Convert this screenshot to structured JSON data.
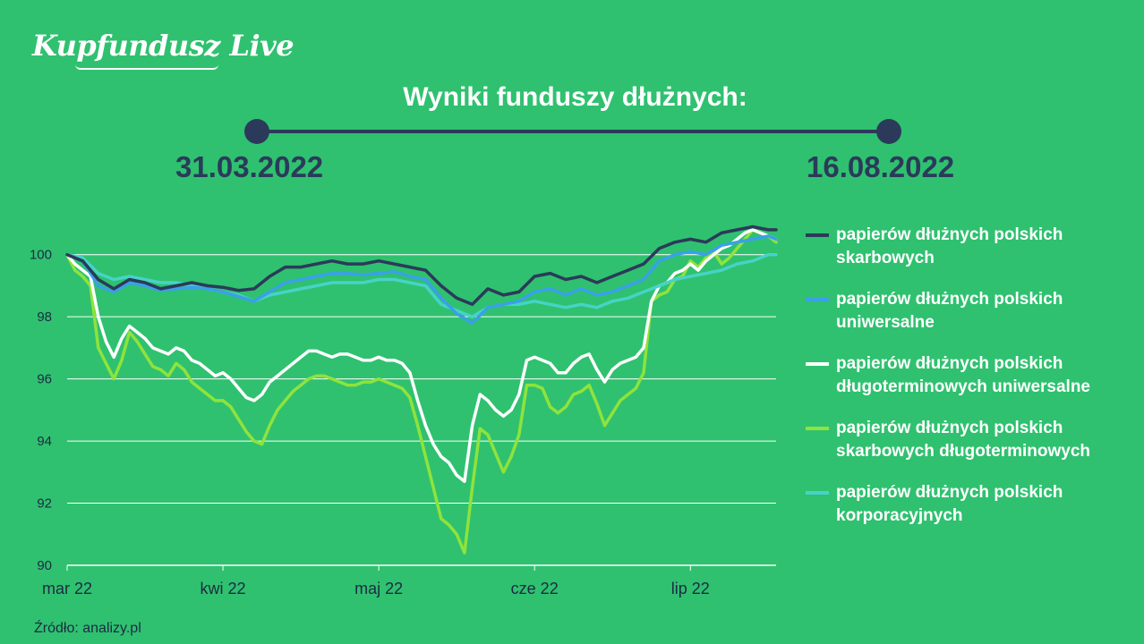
{
  "brand": {
    "logo_text": "Kupfundusz Live"
  },
  "header": {
    "title": "Wyniki funduszy dłużnych:",
    "start_date": "31.03.2022",
    "end_date": "16.08.2022"
  },
  "source_text": "Źródło: analizy.pl",
  "colors": {
    "background": "#2fc16f",
    "navy": "#2b3a5a",
    "blue": "#3aa0e8",
    "white": "#ffffff",
    "lime": "#8ee33c",
    "teal": "#46d3c7"
  },
  "chart_data": {
    "type": "line",
    "title": "Wyniki funduszy dłużnych:",
    "xlabel": "",
    "ylabel": "",
    "ylim": [
      90,
      101
    ],
    "yticks": [
      90,
      92,
      94,
      96,
      98,
      100
    ],
    "x_categories": [
      "mar 22",
      "kwi 22",
      "maj 22",
      "cze 22",
      "lip 22"
    ],
    "x_tick_positions": [
      0,
      10,
      20,
      30,
      40
    ],
    "x_max": 45.5,
    "grid": true,
    "legend_position": "right",
    "series": [
      {
        "name": "papierów dłużnych polskich skarbowych",
        "color": "#2b3a5a",
        "x": [
          0,
          1,
          2,
          3,
          4,
          5,
          6,
          7,
          8,
          9,
          10,
          11,
          12,
          13,
          14,
          15,
          16,
          17,
          18,
          19,
          20,
          21,
          22,
          23,
          24,
          25,
          26,
          27,
          28,
          29,
          30,
          31,
          32,
          33,
          34,
          35,
          36,
          37,
          38,
          39,
          40,
          41,
          42,
          43,
          44,
          45,
          45.5
        ],
        "values": [
          100,
          99.8,
          99.2,
          98.9,
          99.2,
          99.1,
          98.9,
          99.0,
          99.1,
          99.0,
          98.95,
          98.85,
          98.9,
          99.3,
          99.6,
          99.6,
          99.7,
          99.8,
          99.7,
          99.7,
          99.8,
          99.7,
          99.6,
          99.5,
          99.0,
          98.6,
          98.4,
          98.9,
          98.7,
          98.8,
          99.3,
          99.4,
          99.2,
          99.3,
          99.1,
          99.3,
          99.5,
          99.7,
          100.2,
          100.4,
          100.5,
          100.4,
          100.7,
          100.8,
          100.9,
          100.8,
          100.8
        ]
      },
      {
        "name": "papierów dłużnych polskich uniwersalne",
        "color": "#3aa0e8",
        "x": [
          0,
          1,
          2,
          3,
          4,
          5,
          6,
          7,
          8,
          9,
          10,
          11,
          12,
          13,
          14,
          15,
          16,
          17,
          18,
          19,
          20,
          21,
          22,
          23,
          24,
          25,
          26,
          27,
          28,
          29,
          30,
          31,
          32,
          33,
          34,
          35,
          36,
          37,
          38,
          39,
          40,
          41,
          42,
          43,
          44,
          45,
          45.5
        ],
        "values": [
          100,
          99.8,
          99.0,
          98.8,
          99.1,
          99.0,
          98.85,
          98.9,
          98.95,
          98.9,
          98.8,
          98.65,
          98.5,
          98.8,
          99.1,
          99.2,
          99.3,
          99.4,
          99.4,
          99.35,
          99.4,
          99.45,
          99.3,
          99.2,
          98.6,
          98.1,
          97.8,
          98.3,
          98.4,
          98.5,
          98.8,
          98.9,
          98.7,
          98.9,
          98.7,
          98.8,
          99.0,
          99.2,
          99.8,
          100.0,
          100.1,
          100.0,
          100.3,
          100.4,
          100.5,
          100.6,
          100.5
        ]
      },
      {
        "name": "papierów dłużnych polskich długoterminowych uniwersalne",
        "color": "#ffffff",
        "x": [
          0,
          0.5,
          1,
          1.5,
          2,
          2.5,
          3,
          3.5,
          4,
          4.5,
          5,
          5.5,
          6,
          6.5,
          7,
          7.5,
          8,
          8.5,
          9,
          9.5,
          10,
          10.5,
          11,
          11.5,
          12,
          12.5,
          13,
          13.5,
          14,
          14.5,
          15,
          15.5,
          16,
          16.5,
          17,
          17.5,
          18,
          18.5,
          19,
          19.5,
          20,
          20.5,
          21,
          21.5,
          22,
          22.5,
          23,
          23.5,
          24,
          24.5,
          25,
          25.5,
          26,
          26.5,
          27,
          27.5,
          28,
          28.5,
          29,
          29.5,
          30,
          30.5,
          31,
          31.5,
          32,
          32.5,
          33,
          33.5,
          34,
          34.5,
          35,
          35.5,
          36,
          36.5,
          37,
          37.5,
          38,
          38.5,
          39,
          39.5,
          40,
          40.5,
          41,
          41.5,
          42,
          42.5,
          43,
          43.5,
          44,
          44.5,
          45,
          45.5
        ],
        "values": [
          100,
          99.7,
          99.5,
          99.3,
          98.0,
          97.2,
          96.7,
          97.3,
          97.7,
          97.5,
          97.3,
          97.0,
          96.9,
          96.8,
          97.0,
          96.9,
          96.6,
          96.5,
          96.3,
          96.1,
          96.2,
          96.0,
          95.7,
          95.4,
          95.3,
          95.5,
          95.9,
          96.1,
          96.3,
          96.5,
          96.7,
          96.9,
          96.9,
          96.8,
          96.7,
          96.8,
          96.8,
          96.7,
          96.6,
          96.6,
          96.7,
          96.6,
          96.6,
          96.5,
          96.2,
          95.3,
          94.5,
          93.9,
          93.5,
          93.3,
          92.9,
          92.7,
          94.5,
          95.5,
          95.3,
          95.0,
          94.8,
          95.0,
          95.5,
          96.6,
          96.7,
          96.6,
          96.5,
          96.2,
          96.2,
          96.5,
          96.7,
          96.8,
          96.3,
          95.9,
          96.3,
          96.5,
          96.6,
          96.7,
          97.0,
          98.5,
          99.0,
          99.1,
          99.4,
          99.5,
          99.7,
          99.5,
          99.8,
          100.0,
          100.2,
          100.3,
          100.5,
          100.7,
          100.8,
          100.7,
          100.6,
          100.5
        ]
      },
      {
        "name": "papierów dłużnych polskich skarbowych długoterminowych",
        "color": "#8ee33c",
        "x": [
          0,
          0.5,
          1,
          1.5,
          2,
          2.5,
          3,
          3.5,
          4,
          4.5,
          5,
          5.5,
          6,
          6.5,
          7,
          7.5,
          8,
          8.5,
          9,
          9.5,
          10,
          10.5,
          11,
          11.5,
          12,
          12.5,
          13,
          13.5,
          14,
          14.5,
          15,
          15.5,
          16,
          16.5,
          17,
          17.5,
          18,
          18.5,
          19,
          19.5,
          20,
          20.5,
          21,
          21.5,
          22,
          22.5,
          23,
          23.5,
          24,
          24.5,
          25,
          25.5,
          26,
          26.5,
          27,
          27.5,
          28,
          28.5,
          29,
          29.5,
          30,
          30.5,
          31,
          31.5,
          32,
          32.5,
          33,
          33.5,
          34,
          34.5,
          35,
          35.5,
          36,
          36.5,
          37,
          37.5,
          38,
          38.5,
          39,
          39.5,
          40,
          40.5,
          41,
          41.5,
          42,
          42.5,
          43,
          43.5,
          44,
          44.5,
          45,
          45.5
        ],
        "values": [
          100,
          99.5,
          99.3,
          99.0,
          97.0,
          96.5,
          96.0,
          96.6,
          97.5,
          97.2,
          96.8,
          96.4,
          96.3,
          96.1,
          96.5,
          96.3,
          95.9,
          95.7,
          95.5,
          95.3,
          95.3,
          95.1,
          94.7,
          94.3,
          94.0,
          93.9,
          94.5,
          95.0,
          95.3,
          95.6,
          95.8,
          96.0,
          96.1,
          96.1,
          96.0,
          95.9,
          95.8,
          95.8,
          95.9,
          95.9,
          96.0,
          95.9,
          95.8,
          95.7,
          95.4,
          94.5,
          93.5,
          92.5,
          91.5,
          91.3,
          91.0,
          90.4,
          92.5,
          94.4,
          94.2,
          93.6,
          93.0,
          93.5,
          94.2,
          95.8,
          95.8,
          95.7,
          95.1,
          94.9,
          95.1,
          95.5,
          95.6,
          95.8,
          95.2,
          94.5,
          94.9,
          95.3,
          95.5,
          95.7,
          96.2,
          98.5,
          98.7,
          98.8,
          99.2,
          99.3,
          99.8,
          99.6,
          99.9,
          100.1,
          99.7,
          99.9,
          100.2,
          100.5,
          100.8,
          100.7,
          100.6,
          100.4
        ]
      },
      {
        "name": "papierów dłużnych polskich korporacyjnych",
        "color": "#46d3c7",
        "x": [
          0,
          1,
          2,
          3,
          4,
          5,
          6,
          7,
          8,
          9,
          10,
          11,
          12,
          13,
          14,
          15,
          16,
          17,
          18,
          19,
          20,
          21,
          22,
          23,
          24,
          25,
          26,
          27,
          28,
          29,
          30,
          31,
          32,
          33,
          34,
          35,
          36,
          37,
          38,
          39,
          40,
          41,
          42,
          43,
          44,
          45,
          45.5
        ],
        "values": [
          100,
          99.9,
          99.4,
          99.2,
          99.3,
          99.2,
          99.1,
          99.1,
          99.0,
          98.9,
          98.8,
          98.7,
          98.5,
          98.7,
          98.8,
          98.9,
          99.0,
          99.1,
          99.1,
          99.1,
          99.2,
          99.2,
          99.1,
          99.0,
          98.4,
          98.2,
          98.0,
          98.3,
          98.4,
          98.4,
          98.5,
          98.4,
          98.3,
          98.4,
          98.3,
          98.5,
          98.6,
          98.8,
          99.0,
          99.2,
          99.3,
          99.4,
          99.5,
          99.7,
          99.8,
          100.0,
          100.0
        ]
      }
    ]
  }
}
